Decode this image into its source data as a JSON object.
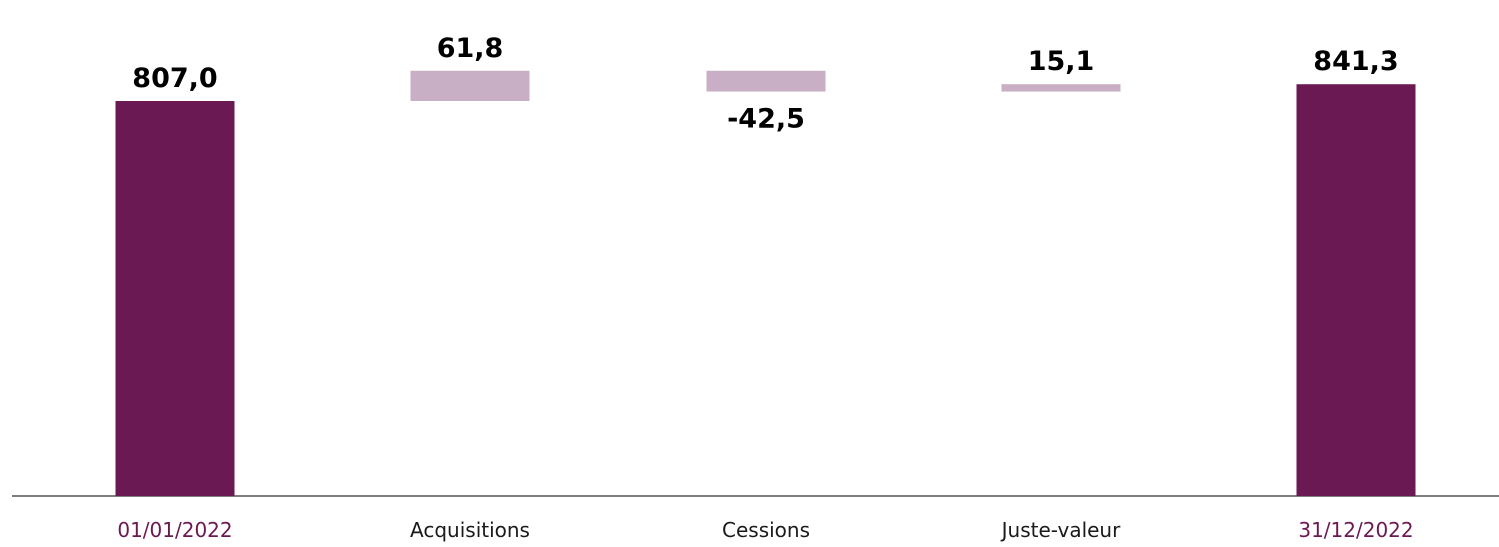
{
  "chart_data": {
    "type": "waterfall",
    "title": "",
    "xlabel": "",
    "ylabel": "",
    "categories": [
      "01/01/2022",
      "Acquisitions",
      "Cessions",
      "Juste-valeur",
      "31/12/2022"
    ],
    "bars": [
      {
        "category": "01/01/2022",
        "kind": "total",
        "value": 807.0,
        "label": "807,0"
      },
      {
        "category": "Acquisitions",
        "kind": "delta",
        "value": 61.8,
        "label": "61,8"
      },
      {
        "category": "Cessions",
        "kind": "delta",
        "value": -42.5,
        "label": "-42,5"
      },
      {
        "category": "Juste-valeur",
        "kind": "delta",
        "value": 15.1,
        "label": "15,1"
      },
      {
        "category": "31/12/2022",
        "kind": "total",
        "value": 841.3,
        "label": "841,3"
      }
    ],
    "colors": {
      "total": "#6B1952",
      "delta": "#C9AFC5",
      "total_label": "#6B1952",
      "delta_label": "#1a1a1a",
      "baseline": "#555555"
    },
    "grid": false,
    "legend": "none"
  }
}
